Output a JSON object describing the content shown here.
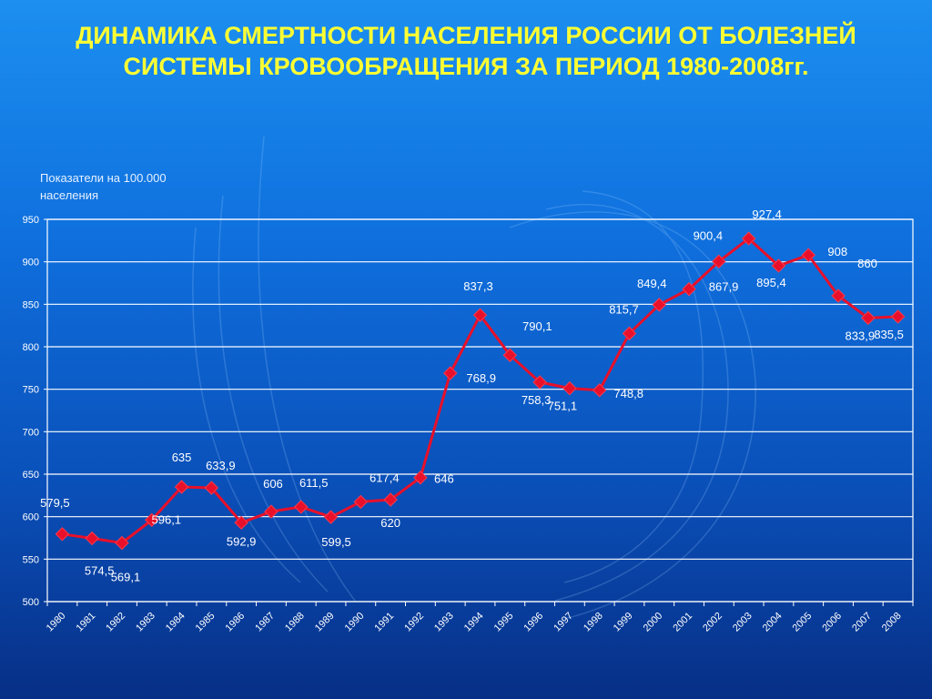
{
  "chart_data": {
    "type": "line",
    "title": "ДИНАМИКА СМЕРТНОСТИ НАСЕЛЕНИЯ РОССИИ ОТ БОЛЕЗНЕЙ СИСТЕМЫ КРОВООБРАЩЕНИЯ ЗА ПЕРИОД 1980-2008гг.",
    "ylabel": "Показатели на 100.000 населения",
    "xlabel": "",
    "ylim": [
      500,
      950
    ],
    "yticks": [
      "500",
      "550",
      "600",
      "650",
      "700",
      "750",
      "800",
      "850",
      "900",
      "950"
    ],
    "grid": true,
    "line_color": "#e8102a",
    "categories": [
      "1980",
      "1981",
      "1982",
      "1983",
      "1984",
      "1985",
      "1986",
      "1987",
      "1988",
      "1989",
      "1990",
      "1991",
      "1992",
      "1993",
      "1994",
      "1995",
      "1996",
      "1997",
      "1998",
      "1999",
      "2000",
      "2001",
      "2002",
      "2003",
      "2004",
      "2005",
      "2006",
      "2007",
      "2008"
    ],
    "values": [
      579.5,
      574.5,
      569.1,
      596.1,
      635,
      633.9,
      592.9,
      606,
      611.5,
      599.5,
      617.4,
      620,
      646,
      768.9,
      837.3,
      790.1,
      758.3,
      751.1,
      748.8,
      815.7,
      849.4,
      867.9,
      900.4,
      927.4,
      895.4,
      908,
      860,
      833.9,
      835.5
    ],
    "labels": [
      "579,5",
      "574,5",
      "569,1",
      "596,1",
      "635",
      "633,9",
      "592,9",
      "606",
      "611,5",
      "599,5",
      "617,4",
      "620",
      "646",
      "768,9",
      "837,3",
      "790,1",
      "758,3",
      "751,1",
      "748,8",
      "815,7",
      "849,4",
      "867,9",
      "900,4",
      "927,4",
      "895,4",
      "908",
      "860",
      "833,9",
      "835,5"
    ]
  }
}
